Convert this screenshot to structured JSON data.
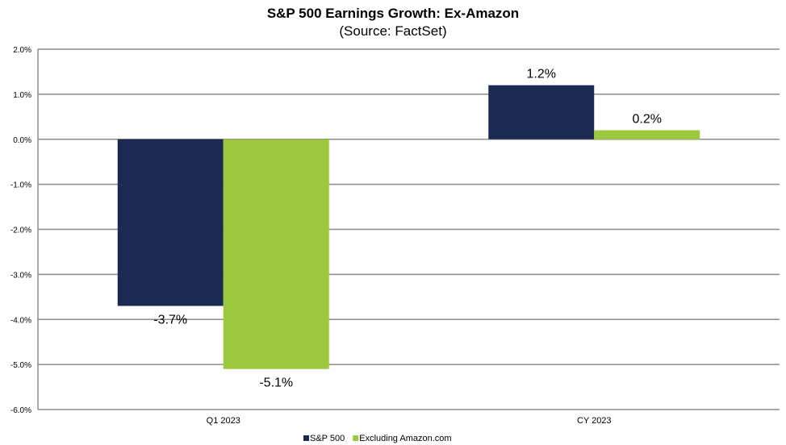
{
  "chart_data": {
    "type": "bar",
    "title": "S&P 500 Earnings Growth: Ex-Amazon",
    "subtitle": "(Source: FactSet)",
    "categories": [
      "Q1 2023",
      "CY 2023"
    ],
    "series": [
      {
        "name": "S&P 500",
        "values": [
          -3.7,
          1.2
        ],
        "labels": [
          "-3.7%",
          "1.2%"
        ],
        "color": "#1b2a52"
      },
      {
        "name": "Excluding Amazon.com",
        "values": [
          -5.1,
          0.2
        ],
        "labels": [
          "-5.1%",
          "0.2%"
        ],
        "color": "#9bc83c"
      }
    ],
    "ylim": [
      -6,
      2
    ],
    "yticks": [
      2,
      1,
      0,
      -1,
      -2,
      -3,
      -4,
      -5,
      -6
    ],
    "ytick_labels": [
      "2.0%",
      "1.0%",
      "0.0%",
      "-1.0%",
      "-2.0%",
      "-3.0%",
      "-4.0%",
      "-5.0%",
      "-6.0%"
    ],
    "xlabel": "",
    "ylabel": "",
    "grid": true,
    "legend_position": "bottom"
  }
}
